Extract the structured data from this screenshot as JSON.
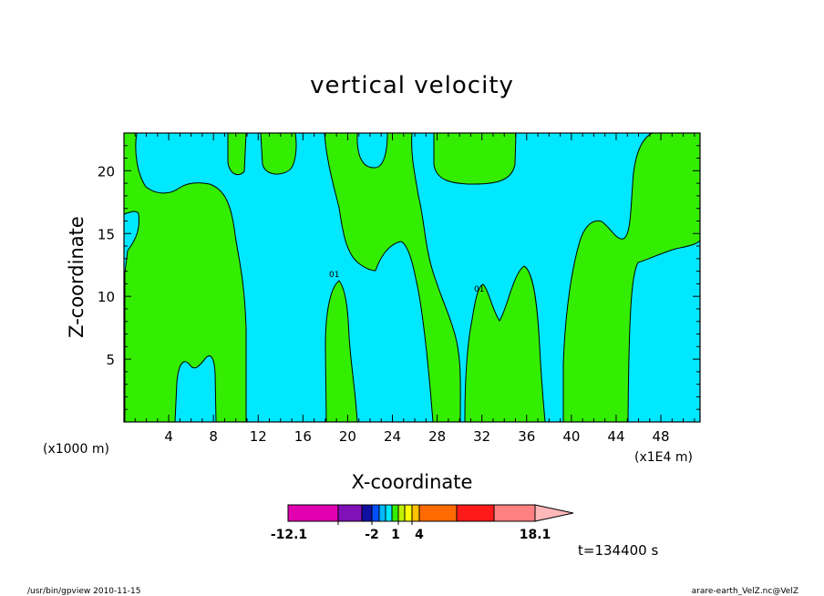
{
  "chart_data": {
    "type": "heatmap",
    "title": "vertical velocity",
    "xlabel": "X-coordinate",
    "ylabel": "Z-coordinate",
    "x_unit": "(x1000 m)",
    "x_scale_note": "(x1E4 m)",
    "xlim": [
      0,
      51.5
    ],
    "ylim": [
      0,
      23
    ],
    "x_ticks": [
      "4",
      "8",
      "12",
      "16",
      "20",
      "24",
      "28",
      "32",
      "36",
      "40",
      "44",
      "48"
    ],
    "x_tick_values": [
      4,
      8,
      12,
      16,
      20,
      24,
      28,
      32,
      36,
      40,
      44,
      48
    ],
    "y_ticks": [
      "5",
      "10",
      "15",
      "20"
    ],
    "y_tick_values": [
      5,
      10,
      15,
      20
    ],
    "contour_labels": [
      "01",
      "01"
    ],
    "fields": [
      {
        "level": "-2 to 1",
        "color": "#00e8ff"
      },
      {
        "level": "1 to 4",
        "color": "#33ee00"
      }
    ],
    "colorbar": {
      "colors": [
        "#e000b0",
        "#8010b8",
        "#1010a0",
        "#0050ff",
        "#00b8ff",
        "#00e8ff",
        "#33ee00",
        "#c0f000",
        "#ffff00",
        "#ffc000",
        "#ff6a00",
        "#ff1a1a",
        "#ff8080",
        "#ffb8b8"
      ],
      "labels": [
        "-12.1",
        "-2",
        "1",
        "4",
        "18.1"
      ]
    },
    "time_label": "t=134400 s"
  },
  "footer": {
    "left": "/usr/bin/gpview   2010-11-15",
    "right": "arare-earth_VelZ.nc@VelZ"
  }
}
